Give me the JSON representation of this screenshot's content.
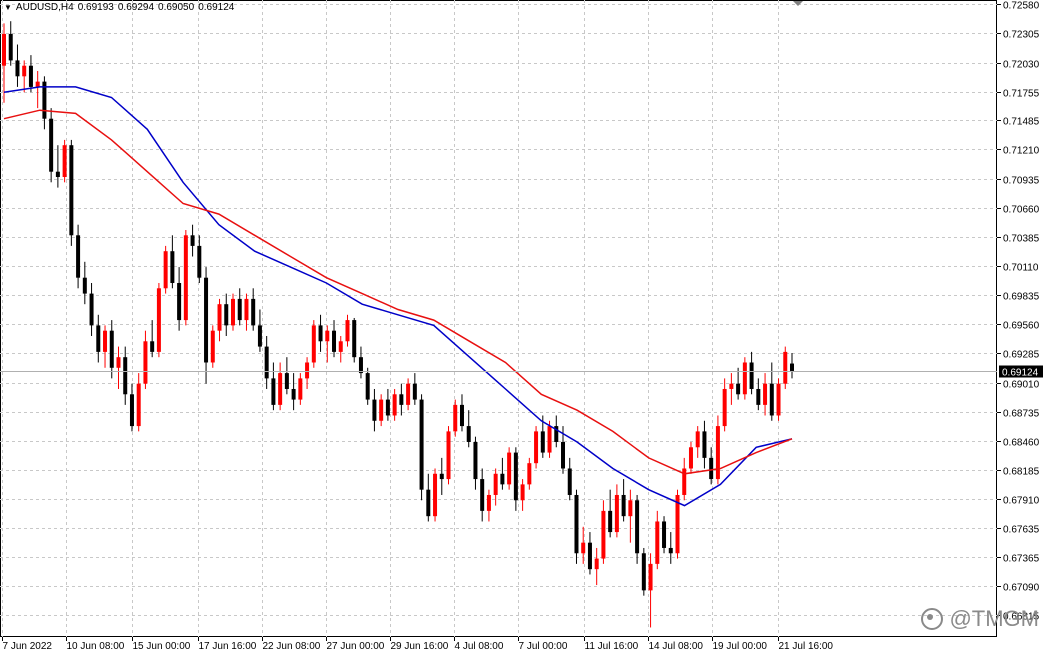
{
  "header": {
    "symbol": "AUDUSD,H4",
    "open": "0.69193",
    "high": "0.69294",
    "low": "0.69050",
    "close": "0.69124"
  },
  "watermark": {
    "text": "@TMGM",
    "logo_icon": "tmgm-logo-icon"
  },
  "colors": {
    "bull": "#ff0000",
    "bear": "#000000",
    "ma_fast": "#0000c8",
    "ma_slow": "#e81010",
    "grid": "#c8c8c8",
    "price_label_bg": "#000000",
    "price_label_fg": "#ffffff"
  },
  "chart_data": {
    "type": "candlestick",
    "title": "",
    "ylim": [
      0.6661,
      0.7262
    ],
    "y_ticks": [
      "0.72580",
      "0.72305",
      "0.72030",
      "0.71755",
      "0.71485",
      "0.71210",
      "0.70935",
      "0.70660",
      "0.70385",
      "0.70110",
      "0.69835",
      "0.69560",
      "0.69285",
      "0.69010",
      "0.68735",
      "0.68460",
      "0.68185",
      "0.67910",
      "0.67635",
      "0.67365",
      "0.67090",
      "0.66815"
    ],
    "x_ticks": [
      "7 Jun 2022",
      "10 Jun 08:00",
      "15 Jun 00:00",
      "17 Jun 16:00",
      "22 Jun 08:00",
      "27 Jun 00:00",
      "29 Jun 16:00",
      "4 Jul 08:00",
      "7 Jul 00:00",
      "11 Jul 16:00",
      "14 Jul 08:00",
      "19 Jul 00:00",
      "21 Jul 16:00"
    ],
    "current_price": "0.69124",
    "grid": true,
    "series": [
      {
        "kind": "ma",
        "values": [
          0.7175,
          0.718,
          0.718,
          0.717,
          0.714,
          0.709,
          0.705,
          0.7025,
          0.701,
          0.6995,
          0.6975,
          0.6965,
          0.6955,
          0.6925,
          0.6895,
          0.6865,
          0.6845,
          0.682,
          0.68,
          0.6785,
          0.6805,
          0.684,
          0.6848
        ]
      },
      {
        "kind": "ma",
        "values": [
          0.715,
          0.7158,
          0.7155,
          0.713,
          0.71,
          0.707,
          0.706,
          0.704,
          0.702,
          0.7,
          0.6985,
          0.697,
          0.696,
          0.694,
          0.692,
          0.689,
          0.6875,
          0.6855,
          0.683,
          0.6815,
          0.682,
          0.6835,
          0.6848
        ]
      }
    ],
    "ohlc": [
      [
        0.72,
        0.724,
        0.7165,
        0.723
      ],
      [
        0.723,
        0.7242,
        0.72,
        0.7205
      ],
      [
        0.7205,
        0.722,
        0.718,
        0.719
      ],
      [
        0.719,
        0.7205,
        0.7175,
        0.72
      ],
      [
        0.72,
        0.721,
        0.7175,
        0.718
      ],
      [
        0.718,
        0.7195,
        0.716,
        0.7185
      ],
      [
        0.7185,
        0.719,
        0.714,
        0.715
      ],
      [
        0.715,
        0.716,
        0.709,
        0.71
      ],
      [
        0.71,
        0.7125,
        0.7085,
        0.7095
      ],
      [
        0.7095,
        0.713,
        0.709,
        0.7125
      ],
      [
        0.7125,
        0.713,
        0.703,
        0.704
      ],
      [
        0.704,
        0.705,
        0.699,
        0.7
      ],
      [
        0.7,
        0.7015,
        0.6975,
        0.6985
      ],
      [
        0.6985,
        0.6995,
        0.6945,
        0.6955
      ],
      [
        0.6955,
        0.6965,
        0.692,
        0.693
      ],
      [
        0.693,
        0.6955,
        0.6915,
        0.695
      ],
      [
        0.695,
        0.696,
        0.6905,
        0.6915
      ],
      [
        0.6915,
        0.6935,
        0.6895,
        0.6925
      ],
      [
        0.6925,
        0.6935,
        0.688,
        0.689
      ],
      [
        0.689,
        0.69,
        0.6855,
        0.686
      ],
      [
        0.686,
        0.691,
        0.6855,
        0.69
      ],
      [
        0.69,
        0.695,
        0.6895,
        0.694
      ],
      [
        0.694,
        0.696,
        0.6925,
        0.693
      ],
      [
        0.693,
        0.6995,
        0.6925,
        0.699
      ],
      [
        0.699,
        0.703,
        0.6985,
        0.7025
      ],
      [
        0.7025,
        0.704,
        0.699,
        0.6995
      ],
      [
        0.6995,
        0.701,
        0.695,
        0.696
      ],
      [
        0.696,
        0.7045,
        0.6955,
        0.704
      ],
      [
        0.704,
        0.705,
        0.702,
        0.703
      ],
      [
        0.703,
        0.704,
        0.6995,
        0.7
      ],
      [
        0.7,
        0.701,
        0.69,
        0.692
      ],
      [
        0.692,
        0.6955,
        0.6915,
        0.695
      ],
      [
        0.695,
        0.698,
        0.694,
        0.6975
      ],
      [
        0.6975,
        0.6985,
        0.6945,
        0.6955
      ],
      [
        0.6955,
        0.6985,
        0.695,
        0.698
      ],
      [
        0.698,
        0.699,
        0.6955,
        0.696
      ],
      [
        0.696,
        0.6985,
        0.695,
        0.698
      ],
      [
        0.698,
        0.699,
        0.695,
        0.6955
      ],
      [
        0.6955,
        0.697,
        0.693,
        0.6935
      ],
      [
        0.6935,
        0.6945,
        0.6895,
        0.6905
      ],
      [
        0.6905,
        0.692,
        0.6875,
        0.688
      ],
      [
        0.688,
        0.692,
        0.6875,
        0.691
      ],
      [
        0.691,
        0.6925,
        0.689,
        0.6895
      ],
      [
        0.6895,
        0.691,
        0.6875,
        0.6885
      ],
      [
        0.6885,
        0.691,
        0.688,
        0.6905
      ],
      [
        0.6905,
        0.6925,
        0.6895,
        0.692
      ],
      [
        0.692,
        0.696,
        0.6915,
        0.6955
      ],
      [
        0.6955,
        0.6965,
        0.693,
        0.694
      ],
      [
        0.694,
        0.6955,
        0.692,
        0.695
      ],
      [
        0.695,
        0.696,
        0.6925,
        0.693
      ],
      [
        0.693,
        0.6945,
        0.692,
        0.694
      ],
      [
        0.694,
        0.6965,
        0.6935,
        0.696
      ],
      [
        0.696,
        0.6962,
        0.692,
        0.6925
      ],
      [
        0.6925,
        0.6935,
        0.6905,
        0.691
      ],
      [
        0.691,
        0.6915,
        0.688,
        0.6885
      ],
      [
        0.6885,
        0.6895,
        0.6855,
        0.6865
      ],
      [
        0.6865,
        0.689,
        0.686,
        0.6885
      ],
      [
        0.6885,
        0.6895,
        0.6865,
        0.687
      ],
      [
        0.687,
        0.6895,
        0.6865,
        0.689
      ],
      [
        0.689,
        0.69,
        0.687,
        0.688
      ],
      [
        0.688,
        0.6905,
        0.6875,
        0.69
      ],
      [
        0.69,
        0.691,
        0.688,
        0.6885
      ],
      [
        0.6885,
        0.689,
        0.679,
        0.68
      ],
      [
        0.68,
        0.6815,
        0.677,
        0.6775
      ],
      [
        0.6775,
        0.682,
        0.677,
        0.6815
      ],
      [
        0.6815,
        0.683,
        0.6795,
        0.681
      ],
      [
        0.681,
        0.686,
        0.6805,
        0.6855
      ],
      [
        0.6855,
        0.6885,
        0.685,
        0.688
      ],
      [
        0.688,
        0.689,
        0.6855,
        0.686
      ],
      [
        0.686,
        0.6875,
        0.684,
        0.6845
      ],
      [
        0.6845,
        0.685,
        0.68,
        0.681
      ],
      [
        0.681,
        0.682,
        0.677,
        0.678
      ],
      [
        0.678,
        0.68,
        0.677,
        0.6795
      ],
      [
        0.6795,
        0.682,
        0.6785,
        0.6815
      ],
      [
        0.6815,
        0.683,
        0.68,
        0.6805
      ],
      [
        0.6805,
        0.684,
        0.68,
        0.6835
      ],
      [
        0.6835,
        0.684,
        0.678,
        0.679
      ],
      [
        0.679,
        0.681,
        0.678,
        0.6805
      ],
      [
        0.6805,
        0.683,
        0.68,
        0.6825
      ],
      [
        0.6825,
        0.686,
        0.682,
        0.6855
      ],
      [
        0.6855,
        0.687,
        0.683,
        0.6835
      ],
      [
        0.6835,
        0.6865,
        0.683,
        0.686
      ],
      [
        0.686,
        0.687,
        0.684,
        0.6845
      ],
      [
        0.6845,
        0.686,
        0.6815,
        0.682
      ],
      [
        0.682,
        0.683,
        0.679,
        0.6795
      ],
      [
        0.6795,
        0.68,
        0.673,
        0.674
      ],
      [
        0.674,
        0.6765,
        0.673,
        0.675
      ],
      [
        0.675,
        0.676,
        0.672,
        0.6725
      ],
      [
        0.6725,
        0.6745,
        0.671,
        0.6735
      ],
      [
        0.6735,
        0.679,
        0.673,
        0.678
      ],
      [
        0.678,
        0.68,
        0.6755,
        0.676
      ],
      [
        0.676,
        0.6805,
        0.6755,
        0.6795
      ],
      [
        0.6795,
        0.681,
        0.677,
        0.6775
      ],
      [
        0.6775,
        0.68,
        0.675,
        0.679
      ],
      [
        0.679,
        0.6795,
        0.673,
        0.674
      ],
      [
        0.674,
        0.6745,
        0.67,
        0.6705
      ],
      [
        0.6705,
        0.674,
        0.667,
        0.673
      ],
      [
        0.673,
        0.678,
        0.6725,
        0.677
      ],
      [
        0.677,
        0.6775,
        0.674,
        0.6745
      ],
      [
        0.6745,
        0.676,
        0.673,
        0.674
      ],
      [
        0.674,
        0.68,
        0.6735,
        0.6795
      ],
      [
        0.6795,
        0.683,
        0.679,
        0.682
      ],
      [
        0.682,
        0.6845,
        0.6815,
        0.684
      ],
      [
        0.684,
        0.686,
        0.683,
        0.6855
      ],
      [
        0.6855,
        0.6865,
        0.682,
        0.683
      ],
      [
        0.683,
        0.684,
        0.6805,
        0.681
      ],
      [
        0.681,
        0.687,
        0.6805,
        0.686
      ],
      [
        0.686,
        0.6905,
        0.6855,
        0.6895
      ],
      [
        0.6895,
        0.691,
        0.688,
        0.69
      ],
      [
        0.69,
        0.6915,
        0.6885,
        0.689
      ],
      [
        0.689,
        0.6925,
        0.6885,
        0.692
      ],
      [
        0.692,
        0.693,
        0.689,
        0.6895
      ],
      [
        0.6895,
        0.6905,
        0.6875,
        0.688
      ],
      [
        0.688,
        0.691,
        0.687,
        0.69
      ],
      [
        0.69,
        0.692,
        0.6865,
        0.687
      ],
      [
        0.687,
        0.6905,
        0.6865,
        0.69
      ],
      [
        0.69,
        0.6935,
        0.6895,
        0.693
      ],
      [
        0.6919,
        0.6929,
        0.6905,
        0.6912
      ]
    ]
  }
}
